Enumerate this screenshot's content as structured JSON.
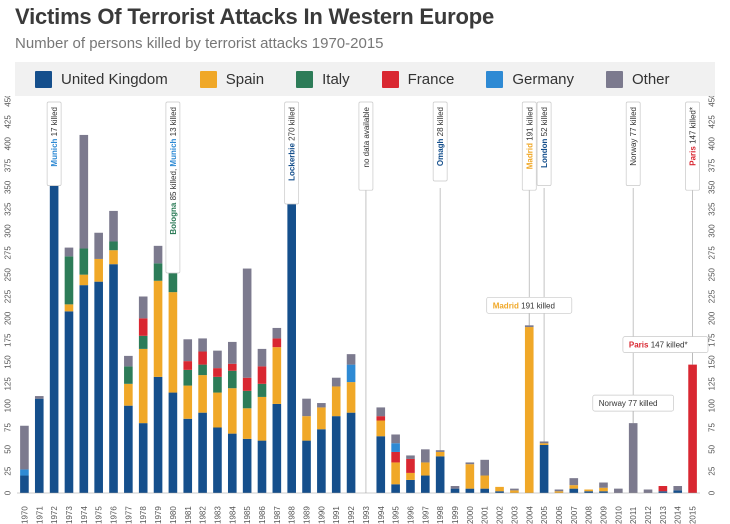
{
  "header": {
    "title": "Victims Of Terrorist Attacks In Western Europe",
    "subtitle": "Number of persons killed by terrorist attacks 1970-2015"
  },
  "legend": [
    {
      "label": "United Kingdom",
      "color": "#154f8c"
    },
    {
      "label": "Spain",
      "color": "#f0a828"
    },
    {
      "label": "Italy",
      "color": "#2d7c58"
    },
    {
      "label": "France",
      "color": "#d92731"
    },
    {
      "label": "Germany",
      "color": "#2e8ad4"
    },
    {
      "label": "Other",
      "color": "#7c7a8e"
    }
  ],
  "chart_data": {
    "type": "bar",
    "stacked": true,
    "ylim": [
      0,
      450
    ],
    "yticks": [
      0,
      25,
      50,
      75,
      100,
      125,
      150,
      175,
      200,
      225,
      250,
      275,
      300,
      325,
      350,
      375,
      400,
      425,
      450
    ],
    "categories": [
      "1970",
      "1971",
      "1972",
      "1973",
      "1974",
      "1975",
      "1976",
      "1977",
      "1978",
      "1979",
      "1980",
      "1981",
      "1982",
      "1983",
      "1984",
      "1985",
      "1986",
      "1987",
      "1988",
      "1989",
      "1990",
      "1991",
      "1992",
      "1993",
      "1994",
      "1995",
      "1996",
      "1997",
      "1998",
      "1999",
      "2000",
      "2001",
      "2002",
      "2003",
      "2004",
      "2005",
      "2006",
      "2007",
      "2008",
      "2009",
      "2010",
      "2011",
      "2012",
      "2013",
      "2014",
      "2015"
    ],
    "series": [
      {
        "name": "United Kingdom",
        "values": [
          20,
          108,
          368,
          208,
          238,
          242,
          262,
          100,
          80,
          133,
          115,
          85,
          92,
          75,
          68,
          62,
          60,
          102,
          368,
          60,
          73,
          88,
          92,
          0,
          65,
          10,
          15,
          20,
          42,
          5,
          5,
          5,
          2,
          0,
          0,
          55,
          0,
          5,
          2,
          2,
          0,
          0,
          0,
          2,
          3,
          0
        ]
      },
      {
        "name": "Spain",
        "values": [
          0,
          0,
          0,
          8,
          12,
          26,
          16,
          25,
          85,
          110,
          115,
          38,
          43,
          40,
          52,
          35,
          50,
          65,
          0,
          28,
          25,
          34,
          35,
          0,
          18,
          25,
          8,
          15,
          5,
          0,
          28,
          15,
          5,
          3,
          190,
          2,
          2,
          4,
          2,
          4,
          0,
          0,
          0,
          0,
          0,
          0
        ]
      },
      {
        "name": "Italy",
        "values": [
          0,
          0,
          0,
          55,
          30,
          0,
          10,
          20,
          15,
          20,
          125,
          18,
          12,
          18,
          20,
          20,
          15,
          0,
          0,
          0,
          0,
          0,
          0,
          0,
          0,
          0,
          0,
          0,
          0,
          0,
          0,
          0,
          0,
          0,
          0,
          0,
          0,
          0,
          0,
          0,
          0,
          0,
          0,
          0,
          0,
          0
        ]
      },
      {
        "name": "France",
        "values": [
          0,
          0,
          0,
          0,
          0,
          0,
          0,
          0,
          20,
          0,
          20,
          10,
          15,
          10,
          8,
          15,
          20,
          10,
          0,
          0,
          0,
          0,
          0,
          0,
          5,
          12,
          16,
          0,
          0,
          0,
          0,
          0,
          0,
          0,
          0,
          0,
          0,
          0,
          0,
          0,
          0,
          0,
          0,
          6,
          0,
          147
        ]
      },
      {
        "name": "Germany",
        "values": [
          7,
          0,
          25,
          0,
          0,
          0,
          0,
          0,
          0,
          0,
          15,
          0,
          0,
          0,
          0,
          0,
          0,
          0,
          0,
          0,
          0,
          0,
          20,
          0,
          0,
          10,
          0,
          0,
          0,
          0,
          0,
          0,
          0,
          0,
          0,
          0,
          0,
          0,
          0,
          0,
          0,
          0,
          0,
          0,
          0,
          0
        ]
      },
      {
        "name": "Other",
        "values": [
          50,
          3,
          10,
          10,
          130,
          30,
          35,
          12,
          25,
          20,
          25,
          25,
          15,
          20,
          25,
          125,
          20,
          12,
          25,
          20,
          5,
          10,
          12,
          0,
          10,
          10,
          4,
          15,
          2,
          3,
          2,
          18,
          0,
          2,
          2,
          2,
          2,
          8,
          0,
          6,
          5,
          80,
          4,
          0,
          5,
          0
        ]
      }
    ],
    "annotations_top": [
      {
        "year": "1972",
        "place": "Munich",
        "rest": " 17 killed",
        "color": "#2e8ad4"
      },
      {
        "year": "1980",
        "place": "Bologna",
        "rest": " 85 killed, ",
        "place2": "Munich",
        "rest2": " 13 killed",
        "color": "#2d7c58",
        "color2": "#2e8ad4"
      },
      {
        "year": "1988",
        "place": "Lockerbie",
        "rest": " 270 killed",
        "color": "#154f8c"
      },
      {
        "year": "1993",
        "place": "",
        "rest": "no data available",
        "color": "#333333"
      },
      {
        "year": "1998",
        "place": "Omagh",
        "rest": " 28 killed",
        "color": "#154f8c"
      },
      {
        "year": "2004",
        "place": "Madrid",
        "rest": " 191 killed",
        "color": "#f0a828"
      },
      {
        "year": "2005",
        "place": "London",
        "rest": " 52 killed",
        "color": "#154f8c"
      },
      {
        "year": "2011",
        "place": "",
        "rest": "Norway 77 killed",
        "color": "#333333"
      },
      {
        "year": "2015",
        "place": "Paris",
        "rest": " 147 killed*",
        "color": "#d92731"
      }
    ],
    "annotations_inline": [
      {
        "year": "2004",
        "place": "Madrid",
        "rest": " 191 killed",
        "color": "#f0a828"
      },
      {
        "year": "2011",
        "place": "",
        "rest": "Norway 77 killed",
        "color": "#333333"
      },
      {
        "year": "2015",
        "place": "Paris",
        "rest": " 147 killed*",
        "color": "#d92731"
      }
    ]
  }
}
